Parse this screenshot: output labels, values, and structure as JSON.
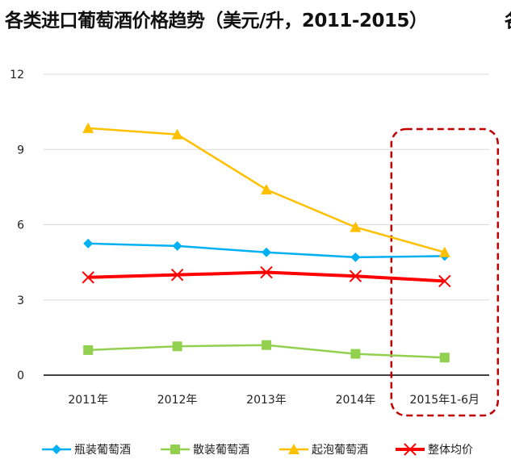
{
  "chart_data": {
    "type": "line",
    "title": "各类进口葡萄酒价格趋势（美元/升，2011-2015）",
    "title_overflow": "各",
    "categories": [
      "2011年",
      "2012年",
      "2013年",
      "2014年",
      "2015年1-6月"
    ],
    "ylim": [
      0,
      12
    ],
    "yticks": [
      "0",
      "3",
      "6",
      "9",
      "12"
    ],
    "grid": true,
    "legend_position": "bottom",
    "highlight": "2015年1-6月",
    "series": [
      {
        "name": "瓶装葡萄酒",
        "color": "#00b0f0",
        "marker": "diamond",
        "values": [
          5.25,
          5.15,
          4.9,
          4.7,
          4.75
        ]
      },
      {
        "name": "散装葡萄酒",
        "color": "#92d050",
        "marker": "square",
        "values": [
          1.0,
          1.15,
          1.2,
          0.85,
          0.7
        ]
      },
      {
        "name": "起泡葡萄酒",
        "color": "#ffc000",
        "marker": "triangle",
        "values": [
          9.85,
          9.6,
          7.4,
          5.9,
          4.9
        ]
      },
      {
        "name": "整体均价",
        "color": "#ff0000",
        "marker": "x",
        "values": [
          3.9,
          4.0,
          4.1,
          3.95,
          3.75
        ]
      }
    ]
  }
}
